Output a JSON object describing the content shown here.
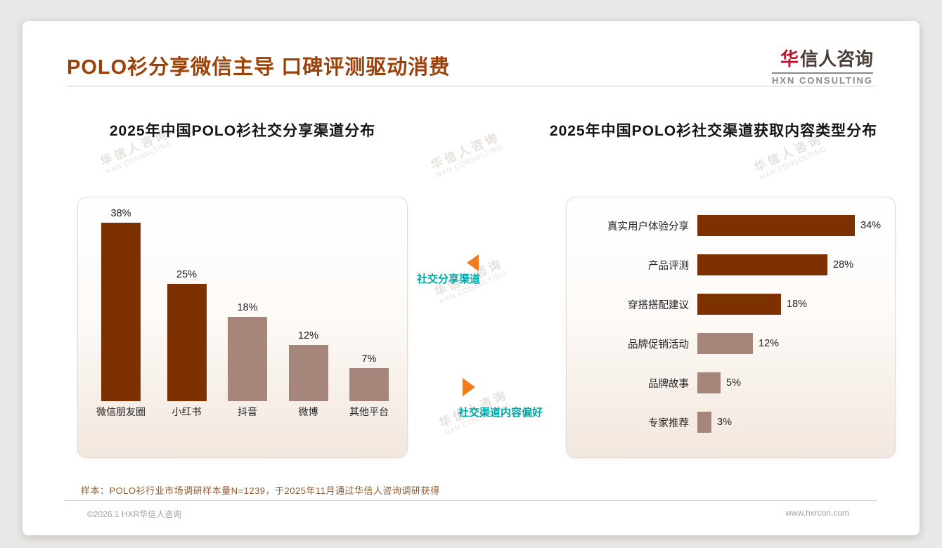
{
  "header": {
    "title": "POLO衫分享微信主导 口碑评测驱动消费",
    "logo": {
      "mark": "华",
      "name": "信人咨询",
      "subtitle": "HXN CONSULTING"
    }
  },
  "watermark": {
    "line1": "华信人咨询",
    "line2": "HXN CONSULTING"
  },
  "middle": {
    "top_label": "社交分享渠道",
    "bottom_label": "社交渠道内容偏好"
  },
  "footnote": "样本：POLO衫行业市场调研样本量N=1239，于2025年11月通过华信人咨询调研获得",
  "footer": {
    "left": "©2026.1 HXR华信人咨询",
    "right": "www.hxrcon.com"
  },
  "colors": {
    "primary_brown": "#7D3100",
    "secondary_mauve": "#A6867B",
    "title": "#9C4108",
    "teal": "#00A5A5",
    "arrow_orange": "#EE7B1D"
  },
  "chart_data": [
    {
      "type": "bar",
      "orientation": "vertical",
      "title": "2025年中国POLO衫社交分享渠道分布",
      "categories": [
        "微信朋友圈",
        "小红书",
        "抖音",
        "微博",
        "其他平台"
      ],
      "values": [
        38,
        25,
        18,
        12,
        7
      ],
      "unit": "%",
      "ylim": [
        0,
        40
      ],
      "grid": false,
      "bar_colors": [
        "#7D3100",
        "#7D3100",
        "#A6867B",
        "#A6867B",
        "#A6867B"
      ]
    },
    {
      "type": "bar",
      "orientation": "horizontal",
      "title": "2025年中国POLO衫社交渠道获取内容类型分布",
      "categories": [
        "真实用户体验分享",
        "产品评测",
        "穿搭搭配建议",
        "品牌促销活动",
        "品牌故事",
        "专家推荐"
      ],
      "values": [
        34,
        28,
        18,
        12,
        5,
        3
      ],
      "unit": "%",
      "xlim": [
        0,
        36
      ],
      "grid": false,
      "bar_colors": [
        "#7D3100",
        "#7D3100",
        "#7D3100",
        "#A6867B",
        "#A6867B",
        "#A6867B"
      ]
    }
  ]
}
